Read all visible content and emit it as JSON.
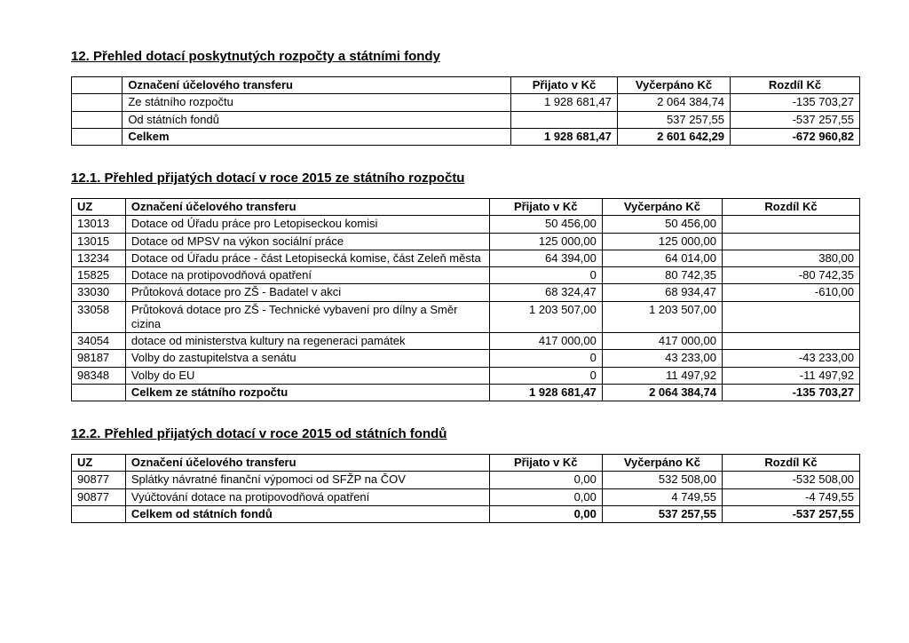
{
  "section12": {
    "title": "12. Přehled dotací poskytnutých rozpočty a státními fondy",
    "headers": {
      "label": "Označení účelového transferu",
      "c1": "Přijato v Kč",
      "c2": "Vyčerpáno Kč",
      "c3": "Rozdíl Kč"
    },
    "rows": [
      {
        "label": "Ze státního rozpočtu",
        "c1": "1 928 681,47",
        "c2": "2 064 384,74",
        "c3": "-135 703,27"
      },
      {
        "label": "Od státních fondů",
        "c1": "",
        "c2": "537 257,55",
        "c3": "-537 257,55"
      }
    ],
    "total": {
      "label": "Celkem",
      "c1": "1 928 681,47",
      "c2": "2 601 642,29",
      "c3": "-672 960,82"
    }
  },
  "section121": {
    "title": "12.1. Přehled přijatých dotací v roce 2015 ze státního rozpočtu",
    "headers": {
      "uz": "UZ",
      "label": "Označení účelového transferu",
      "c1": "Přijato v Kč",
      "c2": "Vyčerpáno Kč",
      "c3": "Rozdíl Kč"
    },
    "rows": [
      {
        "uz": "13013",
        "label": "Dotace od Úřadu práce pro Letopiseckou komisi",
        "c1": "50 456,00",
        "c2": "50 456,00",
        "c3": ""
      },
      {
        "uz": "13015",
        "label": "Dotace od MPSV na výkon sociální práce",
        "c1": "125 000,00",
        "c2": "125 000,00",
        "c3": ""
      },
      {
        "uz": "13234",
        "label": "Dotace od Úřadu práce - část Letopisecká komise, část Zeleň města",
        "c1": "64 394,00",
        "c2": "64 014,00",
        "c3": "380,00"
      },
      {
        "uz": "15825",
        "label": "Dotace na protipovodňová opatření",
        "c1": "0",
        "c2": "80 742,35",
        "c3": "-80 742,35"
      },
      {
        "uz": "33030",
        "label": "Průtoková dotace pro ZŠ - Badatel v akci",
        "c1": "68 324,47",
        "c2": "68 934,47",
        "c3": "-610,00"
      },
      {
        "uz": "33058",
        "label": "Průtoková dotace pro ZŠ - Technické vybavení pro dílny a Směr cizina",
        "c1": "1 203 507,00",
        "c2": "1 203 507,00",
        "c3": ""
      },
      {
        "uz": "34054",
        "label": "dotace od ministerstva kultury na regeneraci památek",
        "c1": "417 000,00",
        "c2": "417 000,00",
        "c3": ""
      },
      {
        "uz": "98187",
        "label": "Volby do zastupitelstva a senátu",
        "c1": "0",
        "c2": "43 233,00",
        "c3": "-43 233,00"
      },
      {
        "uz": "98348",
        "label": "Volby do EU",
        "c1": "0",
        "c2": "11 497,92",
        "c3": "-11 497,92"
      }
    ],
    "total": {
      "uz": "",
      "label": "Celkem ze státního rozpočtu",
      "c1": "1 928 681,47",
      "c2": "2 064 384,74",
      "c3": "-135 703,27"
    }
  },
  "section122": {
    "title": "12.2. Přehled přijatých dotací v roce 2015 od státních fondů",
    "headers": {
      "uz": "UZ",
      "label": "Označení účelového transferu",
      "c1": "Přijato v Kč",
      "c2": "Vyčerpáno Kč",
      "c3": "Rozdíl Kč"
    },
    "rows": [
      {
        "uz": "90877",
        "label": "Splátky návratné finanční výpomoci od SFŽP na ČOV",
        "c1": "0,00",
        "c2": "532 508,00",
        "c3": "-532 508,00"
      },
      {
        "uz": "90877",
        "label": "Vyúčtování dotace na protipovodňová opatření",
        "c1": "0,00",
        "c2": "4 749,55",
        "c3": "-4 749,55"
      }
    ],
    "total": {
      "uz": "",
      "label": "Celkem od státních fondů",
      "c1": "0,00",
      "c2": "537 257,55",
      "c3": "-537 257,55"
    }
  }
}
